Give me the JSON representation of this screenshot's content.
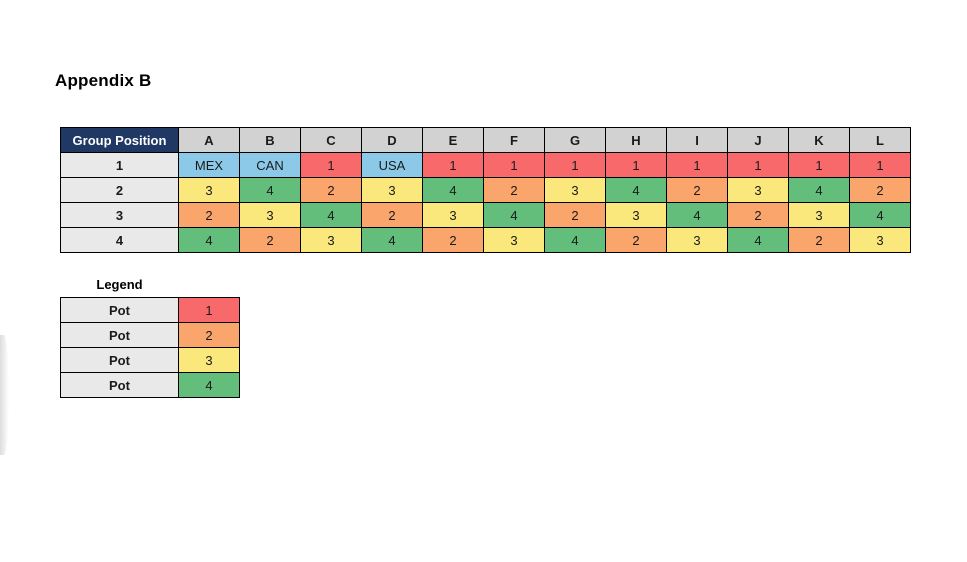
{
  "page": {
    "title": "Appendix B"
  },
  "colors": {
    "navy": "#1F3864",
    "column_header_gray": "#D2D2D2",
    "row_label_gray": "#E9E9E9",
    "pot1": "#F8696B",
    "pot2": "#F9A56C",
    "pot3": "#FBE87D",
    "pot4": "#63BE7B",
    "team_blue": "#8CC9E9"
  },
  "table": {
    "corner_label": "Group Position",
    "columns": [
      "A",
      "B",
      "C",
      "D",
      "E",
      "F",
      "G",
      "H",
      "I",
      "J",
      "K",
      "L"
    ],
    "rows": [
      {
        "label": "1",
        "cells": [
          {
            "text": "MEX",
            "bg": "team_blue"
          },
          {
            "text": "CAN",
            "bg": "team_blue"
          },
          {
            "text": "1",
            "bg": "pot1"
          },
          {
            "text": "USA",
            "bg": "team_blue"
          },
          {
            "text": "1",
            "bg": "pot1"
          },
          {
            "text": "1",
            "bg": "pot1"
          },
          {
            "text": "1",
            "bg": "pot1"
          },
          {
            "text": "1",
            "bg": "pot1"
          },
          {
            "text": "1",
            "bg": "pot1"
          },
          {
            "text": "1",
            "bg": "pot1"
          },
          {
            "text": "1",
            "bg": "pot1"
          },
          {
            "text": "1",
            "bg": "pot1"
          }
        ]
      },
      {
        "label": "2",
        "cells": [
          {
            "text": "3",
            "bg": "pot3"
          },
          {
            "text": "4",
            "bg": "pot4"
          },
          {
            "text": "2",
            "bg": "pot2"
          },
          {
            "text": "3",
            "bg": "pot3"
          },
          {
            "text": "4",
            "bg": "pot4"
          },
          {
            "text": "2",
            "bg": "pot2"
          },
          {
            "text": "3",
            "bg": "pot3"
          },
          {
            "text": "4",
            "bg": "pot4"
          },
          {
            "text": "2",
            "bg": "pot2"
          },
          {
            "text": "3",
            "bg": "pot3"
          },
          {
            "text": "4",
            "bg": "pot4"
          },
          {
            "text": "2",
            "bg": "pot2"
          }
        ]
      },
      {
        "label": "3",
        "cells": [
          {
            "text": "2",
            "bg": "pot2"
          },
          {
            "text": "3",
            "bg": "pot3"
          },
          {
            "text": "4",
            "bg": "pot4"
          },
          {
            "text": "2",
            "bg": "pot2"
          },
          {
            "text": "3",
            "bg": "pot3"
          },
          {
            "text": "4",
            "bg": "pot4"
          },
          {
            "text": "2",
            "bg": "pot2"
          },
          {
            "text": "3",
            "bg": "pot3"
          },
          {
            "text": "4",
            "bg": "pot4"
          },
          {
            "text": "2",
            "bg": "pot2"
          },
          {
            "text": "3",
            "bg": "pot3"
          },
          {
            "text": "4",
            "bg": "pot4"
          }
        ]
      },
      {
        "label": "4",
        "cells": [
          {
            "text": "4",
            "bg": "pot4"
          },
          {
            "text": "2",
            "bg": "pot2"
          },
          {
            "text": "3",
            "bg": "pot3"
          },
          {
            "text": "4",
            "bg": "pot4"
          },
          {
            "text": "2",
            "bg": "pot2"
          },
          {
            "text": "3",
            "bg": "pot3"
          },
          {
            "text": "4",
            "bg": "pot4"
          },
          {
            "text": "2",
            "bg": "pot2"
          },
          {
            "text": "3",
            "bg": "pot3"
          },
          {
            "text": "4",
            "bg": "pot4"
          },
          {
            "text": "2",
            "bg": "pot2"
          },
          {
            "text": "3",
            "bg": "pot3"
          }
        ]
      }
    ]
  },
  "legend": {
    "title": "Legend",
    "rows": [
      {
        "label": "Pot",
        "value": "1",
        "color": "pot1"
      },
      {
        "label": "Pot",
        "value": "2",
        "color": "pot2"
      },
      {
        "label": "Pot",
        "value": "3",
        "color": "pot3"
      },
      {
        "label": "Pot",
        "value": "4",
        "color": "pot4"
      }
    ]
  }
}
